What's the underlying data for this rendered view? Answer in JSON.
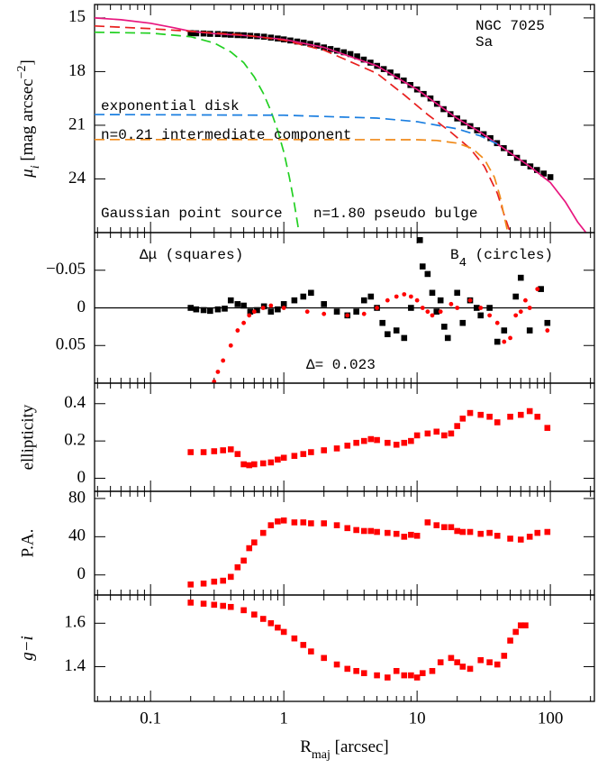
{
  "chart_data": {
    "type": "multi",
    "log_x": true,
    "xlim": [
      0.038,
      214
    ],
    "xticks": [
      0.1,
      1,
      10,
      100
    ],
    "xminorticks": [
      0.04,
      0.05,
      0.06,
      0.07,
      0.08,
      0.09,
      0.2,
      0.3,
      0.4,
      0.5,
      0.6,
      0.7,
      0.8,
      0.9,
      2,
      3,
      4,
      5,
      6,
      7,
      8,
      9,
      20,
      30,
      40,
      50,
      60,
      70,
      80,
      90,
      200
    ],
    "xlabel": [
      {
        "text": "R"
      },
      {
        "text": "maj",
        "sub": true
      },
      {
        "text": " [arcsec]"
      }
    ],
    "panels": [
      {
        "type": "line",
        "ylim": [
          27,
          14.25
        ],
        "yticks": [
          15,
          18,
          21,
          24
        ],
        "ylabel": [
          {
            "text": "μ",
            "italic": true
          },
          {
            "text": "i",
            "sub": true,
            "italic": true
          },
          {
            "text": " [mag arcsec"
          },
          {
            "text": "−2",
            "sup": true
          },
          {
            "text": "]"
          }
        ],
        "annotations": [
          "NGC 7025",
          "Sa"
        ],
        "series": [
          {
            "color": "#000000",
            "marker": "square",
            "x": [
              0.2,
              0.22,
              0.25,
              0.28,
              0.32,
              0.36,
              0.4,
              0.45,
              0.5,
              0.56,
              0.63,
              0.71,
              0.8,
              0.9,
              1,
              1.12,
              1.26,
              1.41,
              1.58,
              1.78,
              2,
              2.24,
              2.51,
              2.82,
              3.16,
              3.55,
              3.98,
              4.47,
              5.01,
              5.62,
              6.31,
              7.08,
              7.94,
              8.91,
              10,
              11.2,
              12.6,
              14.1,
              15.8,
              17.8,
              20,
              22.4,
              25.1,
              28.2,
              31.6,
              35.5,
              39.8,
              44.7,
              50.1,
              56.2,
              63.1,
              70.8,
              79.4,
              89.1,
              100
            ],
            "values": [
              15.85,
              15.86,
              15.87,
              15.89,
              15.9,
              15.92,
              15.94,
              15.96,
              15.97,
              16.0,
              16.02,
              16.05,
              16.1,
              16.15,
              16.2,
              16.26,
              16.32,
              16.38,
              16.45,
              16.55,
              16.65,
              16.74,
              16.83,
              16.92,
              17.02,
              17.15,
              17.33,
              17.5,
              17.68,
              17.86,
              18.05,
              18.27,
              18.5,
              18.75,
              19.0,
              19.25,
              19.5,
              19.8,
              20.1,
              20.38,
              20.62,
              20.85,
              21.05,
              21.28,
              21.5,
              21.72,
              22.0,
              22.28,
              22.55,
              22.82,
              23.1,
              23.3,
              23.5,
              23.7,
              23.9
            ]
          },
          {
            "color": "#e8177f",
            "style": "solid",
            "x": [
              0.038,
              0.06,
              0.1,
              0.15,
              0.2,
              0.3,
              0.5,
              1,
              2,
              5,
              10,
              20,
              30,
              50,
              70,
              100,
              130,
              160,
              185
            ],
            "values": [
              15,
              15.1,
              15.3,
              15.55,
              15.75,
              15.88,
              15.98,
              16.2,
              16.65,
              17.68,
              19,
              20.62,
              21.4,
              22.55,
              23.3,
              24.2,
              25.3,
              26.4,
              27
            ]
          },
          {
            "name": "n=1.80 pseudo bulge",
            "color": "#e8201f",
            "style": "dashed",
            "x": [
              0.038,
              0.1,
              0.2,
              0.5,
              1,
              2,
              5,
              8,
              12,
              18,
              25,
              32,
              40,
              45,
              50
            ],
            "values": [
              15.45,
              15.6,
              15.75,
              15.95,
              16.25,
              16.8,
              18.1,
              19.3,
              20.4,
              21.4,
              22.3,
              23.3,
              24.8,
              26,
              27
            ]
          },
          {
            "name": "Gaussian point source",
            "color": "#22d022",
            "style": "dashed",
            "x": [
              0.038,
              0.1,
              0.2,
              0.3,
              0.4,
              0.5,
              0.6,
              0.7,
              0.8,
              0.9,
              1,
              1.1,
              1.2,
              1.3
            ],
            "values": [
              15.8,
              15.85,
              16.05,
              16.4,
              16.9,
              17.5,
              18.3,
              19.2,
              20.2,
              21.3,
              22.5,
              23.9,
              25.4,
              27
            ]
          },
          {
            "name": "exponential disk",
            "color": "#1a7ee0",
            "style": "dashed",
            "x": [
              0.038,
              1,
              5,
              10,
              20,
              30,
              40
            ],
            "values": [
              20.4,
              20.44,
              20.6,
              20.8,
              21.2,
              21.6,
              22.05
            ]
          },
          {
            "name": "n=0.21 intermediate component",
            "color": "#f08a1a",
            "style": "dashed",
            "x": [
              0.038,
              1,
              10,
              14,
              20,
              26,
              32,
              38,
              42,
              46,
              48
            ],
            "values": [
              21.8,
              21.8,
              21.81,
              21.85,
              22.0,
              22.3,
              22.9,
              23.9,
              25.0,
              26.4,
              27.0
            ]
          }
        ]
      },
      {
        "type": "scatter",
        "ylim": [
          0.1,
          -0.1
        ],
        "yticks": [
          {
            "value": -0.05,
            "label": "−0.05"
          },
          0,
          0.05
        ],
        "zero_line": true,
        "annotations": [
          "Δμ (squares)",
          [
            {
              "text": "B"
            },
            {
              "text": "4",
              "sub": true
            },
            {
              "text": " (circles)"
            }
          ],
          "Δ= 0.023"
        ],
        "series": [
          {
            "color": "#000000",
            "marker": "square",
            "x": [
              0.2,
              0.22,
              0.25,
              0.28,
              0.32,
              0.36,
              0.4,
              0.45,
              0.5,
              0.56,
              0.63,
              0.71,
              0.8,
              0.9,
              1,
              1.2,
              1.4,
              1.6,
              2,
              2.5,
              3,
              3.5,
              4,
              4.5,
              5,
              5.5,
              6,
              7,
              8,
              9,
              10.5,
              11,
              12,
              13,
              14,
              15,
              16,
              17,
              20,
              22,
              25,
              28,
              30,
              35,
              40,
              45,
              55,
              60,
              70,
              85,
              95
            ],
            "values": [
              0,
              0.002,
              0.003,
              0.004,
              0.002,
              0.001,
              -0.01,
              -0.005,
              -0.003,
              0.005,
              0.003,
              -0.002,
              0.005,
              0.002,
              -0.005,
              -0.01,
              -0.015,
              -0.02,
              -0.005,
              0.005,
              0.01,
              0.005,
              -0.01,
              -0.015,
              0,
              0.02,
              0.035,
              0.03,
              0.04,
              0,
              -0.09,
              -0.055,
              -0.045,
              -0.02,
              0.005,
              -0.01,
              0.025,
              0.04,
              -0.02,
              0.02,
              -0.01,
              0,
              0.01,
              0,
              0.045,
              0.03,
              -0.015,
              -0.04,
              0.03,
              -0.025,
              0.02
            ]
          },
          {
            "color": "#ff0000",
            "marker": "circle",
            "x": [
              0.3,
              0.32,
              0.35,
              0.4,
              0.45,
              0.5,
              0.55,
              0.6,
              0.7,
              0.8,
              1,
              1.5,
              2,
              3,
              4,
              5,
              6,
              7,
              8,
              9,
              10,
              11,
              12,
              13,
              15,
              18,
              20,
              25,
              30,
              35,
              40,
              45,
              50,
              55,
              60,
              65,
              70,
              80,
              95
            ],
            "values": [
              0.098,
              0.085,
              0.07,
              0.05,
              0.03,
              0.02,
              0.01,
              0.005,
              0,
              -0.003,
              0,
              0.005,
              0.008,
              0.01,
              0.008,
              0,
              -0.01,
              -0.015,
              -0.018,
              -0.015,
              -0.01,
              0,
              0.005,
              0.01,
              0.005,
              -0.005,
              0,
              -0.01,
              0,
              0.01,
              0.02,
              0.045,
              0.04,
              0.01,
              0.005,
              -0.01,
              0,
              -0.025,
              0.03
            ]
          }
        ]
      },
      {
        "type": "scatter",
        "ylim": [
          -0.07,
          0.51
        ],
        "yticks": [
          0,
          0.2,
          0.4
        ],
        "ylabel": "ellipticity",
        "series": [
          {
            "color": "#ff0000",
            "marker": "square",
            "x": [
              0.2,
              0.25,
              0.3,
              0.35,
              0.4,
              0.45,
              0.5,
              0.55,
              0.6,
              0.7,
              0.8,
              0.9,
              1,
              1.2,
              1.4,
              1.6,
              2,
              2.5,
              3,
              3.5,
              4,
              4.5,
              5,
              6,
              7,
              8,
              9,
              10,
              12,
              14,
              16,
              18,
              20,
              22,
              25,
              30,
              35,
              40,
              50,
              60,
              70,
              80,
              95
            ],
            "values": [
              0.14,
              0.14,
              0.145,
              0.15,
              0.155,
              0.13,
              0.075,
              0.07,
              0.075,
              0.08,
              0.085,
              0.1,
              0.11,
              0.12,
              0.13,
              0.14,
              0.15,
              0.16,
              0.175,
              0.19,
              0.2,
              0.21,
              0.205,
              0.19,
              0.18,
              0.19,
              0.2,
              0.23,
              0.24,
              0.25,
              0.23,
              0.24,
              0.28,
              0.32,
              0.35,
              0.34,
              0.33,
              0.3,
              0.33,
              0.34,
              0.36,
              0.33,
              0.27
            ]
          }
        ]
      },
      {
        "type": "scatter",
        "ylim": [
          -21,
          87.5
        ],
        "yticks": [
          0,
          40,
          80
        ],
        "ylabel": "P.A.",
        "series": [
          {
            "color": "#ff0000",
            "marker": "square",
            "x": [
              0.2,
              0.25,
              0.3,
              0.35,
              0.4,
              0.45,
              0.5,
              0.55,
              0.6,
              0.7,
              0.8,
              0.9,
              1,
              1.2,
              1.4,
              1.6,
              2,
              2.5,
              3,
              3.5,
              4,
              4.5,
              5,
              6,
              7,
              8,
              9,
              10,
              12,
              14,
              16,
              18,
              20,
              22,
              25,
              30,
              35,
              40,
              50,
              60,
              70,
              80,
              95
            ],
            "values": [
              -10,
              -9,
              -7,
              -6,
              -2,
              8,
              15,
              28,
              34,
              44,
              52,
              56,
              57,
              55,
              55,
              54,
              54,
              52,
              49,
              47,
              46,
              46,
              45,
              44,
              43,
              40,
              42,
              41,
              55,
              52,
              50,
              50,
              46,
              45,
              45,
              43,
              44,
              41,
              38,
              37,
              40,
              44,
              45
            ]
          }
        ]
      },
      {
        "type": "scatter",
        "ylim": [
          1.24,
          1.73
        ],
        "yticks": [
          1.4,
          1.6
        ],
        "ylabel": [
          {
            "text": "g−i",
            "italic": true
          }
        ],
        "series": [
          {
            "color": "#ff0000",
            "marker": "square",
            "x": [
              0.2,
              0.25,
              0.3,
              0.35,
              0.4,
              0.5,
              0.6,
              0.7,
              0.8,
              0.9,
              1,
              1.2,
              1.4,
              1.6,
              2,
              2.5,
              3,
              3.5,
              4,
              5,
              6,
              7,
              8,
              9,
              10,
              11,
              13,
              15,
              18,
              20,
              22,
              25,
              30,
              35,
              40,
              45,
              50,
              55,
              60,
              65
            ],
            "values": [
              1.695,
              1.69,
              1.685,
              1.68,
              1.675,
              1.66,
              1.64,
              1.62,
              1.6,
              1.58,
              1.56,
              1.53,
              1.5,
              1.47,
              1.44,
              1.41,
              1.39,
              1.38,
              1.37,
              1.36,
              1.35,
              1.38,
              1.36,
              1.36,
              1.35,
              1.37,
              1.38,
              1.42,
              1.44,
              1.42,
              1.4,
              1.39,
              1.43,
              1.42,
              1.41,
              1.45,
              1.52,
              1.56,
              1.59,
              1.59
            ]
          }
        ]
      }
    ]
  }
}
